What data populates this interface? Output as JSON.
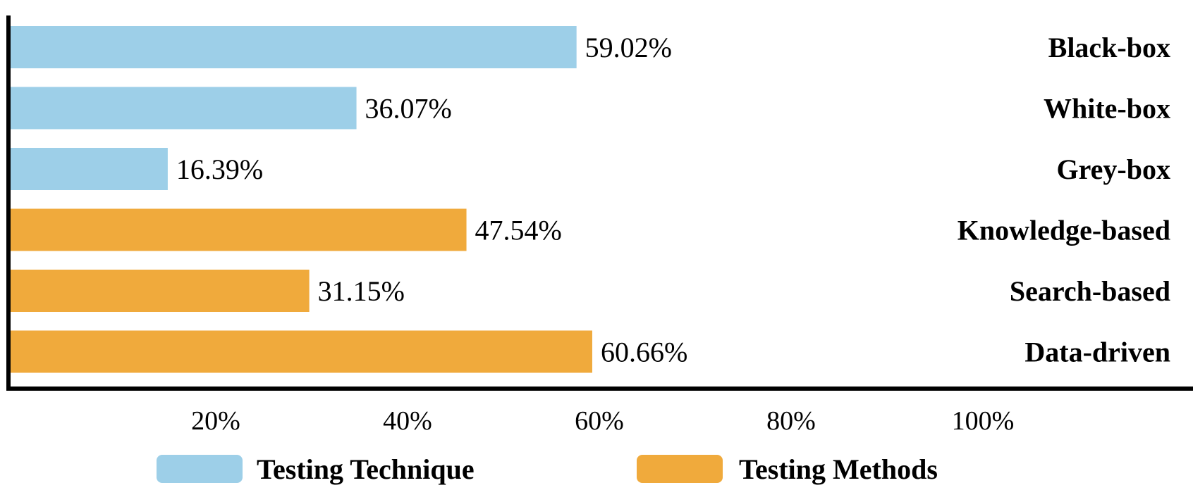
{
  "chart_data": {
    "type": "bar",
    "orientation": "horizontal",
    "categories": [
      "Black-box",
      "White-box",
      "Grey-box",
      "Knowledge-based",
      "Search-based",
      "Data-driven"
    ],
    "values": [
      59.02,
      36.07,
      16.39,
      47.54,
      31.15,
      60.66
    ],
    "value_labels": [
      "59.02%",
      "36.07%",
      "16.39%",
      "47.54%",
      "31.15%",
      "60.66%"
    ],
    "groups": [
      "Testing Technique",
      "Testing Technique",
      "Testing Technique",
      "Testing Methods",
      "Testing Methods",
      "Testing Methods"
    ],
    "x_ticks": [
      20,
      40,
      60,
      80,
      100
    ],
    "x_tick_labels": [
      "20%",
      "40%",
      "60%",
      "80%",
      "100%"
    ],
    "xlim": [
      0,
      112
    ],
    "grid": false,
    "category_label_side": "right",
    "legend": {
      "position": "bottom",
      "items": [
        {
          "label": "Testing Technique",
          "color": "#9dcfe8"
        },
        {
          "label": "Testing Methods",
          "color": "#f0aa3c"
        }
      ]
    },
    "colors": {
      "Testing Technique": "#9dcfe8",
      "Testing Methods": "#f0aa3c"
    }
  }
}
